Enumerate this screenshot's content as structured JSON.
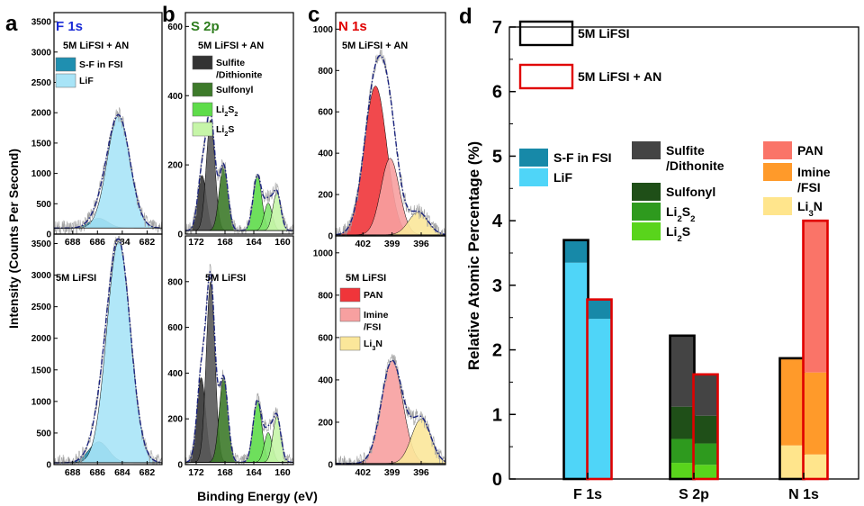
{
  "chart_data": [
    {
      "id": "a",
      "type": "line",
      "panel_letter": "a",
      "title": "F 1s",
      "title_color": "#1a2bd6",
      "ylabel": "Intensity (Counts Per Second)",
      "xlabel": "Binding Energy (eV)",
      "xlim": [
        689.5,
        680.8
      ],
      "ylim": [
        0,
        3650
      ],
      "xticks": [
        688,
        686,
        684,
        682
      ],
      "yticks": [
        0,
        500,
        1000,
        1500,
        2000,
        2500,
        3000,
        3500
      ],
      "subplots": [
        {
          "label": "5M LiFSI + AN",
          "baseline": 100,
          "legend": [
            {
              "name": "S-F in FSI",
              "color": "#1f8fb0"
            },
            {
              "name": "LiF",
              "color": "#a8e4f7"
            }
          ],
          "peaks": [
            {
              "name": "S-F in FSI",
              "center": 685.9,
              "width": 0.75,
              "height": 160,
              "color": "#1f8fb0"
            },
            {
              "name": "LiF",
              "center": 684.3,
              "width": 0.92,
              "height": 1850,
              "color": "#a8e4f7"
            }
          ]
        },
        {
          "label": "5M LiFSI",
          "baseline": 30,
          "legend": [],
          "peaks": [
            {
              "name": "S-F in FSI",
              "center": 685.9,
              "width": 0.8,
              "height": 330,
              "color": "#1f8fb0"
            },
            {
              "name": "LiF",
              "center": 684.3,
              "width": 0.95,
              "height": 3500,
              "color": "#a8e4f7"
            }
          ]
        }
      ]
    },
    {
      "id": "b",
      "type": "line",
      "panel_letter": "b",
      "title": "S 2p",
      "title_color": "#2e7d1e",
      "xlim": [
        173.5,
        158.5
      ],
      "ylim": [
        0,
        640
      ],
      "xticks": [
        172,
        168,
        164,
        160
      ],
      "yticks": [
        0,
        200,
        400,
        600
      ],
      "subplots": [
        {
          "label": "5M LiFSI + AN",
          "baseline": 10,
          "legend": [
            {
              "name": "Sulfite",
              "name2": "/Dithionite",
              "color": "#333333"
            },
            {
              "name": "Sulfonyl",
              "color": "#3d7a2a"
            },
            {
              "name": "Li",
              "sub": "2",
              "suffix": "S",
              "sub2": "2",
              "color": "#5edc4a"
            },
            {
              "name": "Li",
              "sub": "2",
              "suffix": "S",
              "color": "#c6f5a8"
            }
          ],
          "peaks": [
            {
              "name": "Sulfite",
              "center": 171.2,
              "width": 0.6,
              "height": 160,
              "color": "#333333"
            },
            {
              "name": "Dithionite",
              "center": 170.0,
              "width": 0.6,
              "height": 320,
              "color": "#5a5a5a"
            },
            {
              "name": "Sulfonyl",
              "center": 168.2,
              "width": 0.6,
              "height": 190,
              "color": "#3d7a2a"
            },
            {
              "name": "Li2S2",
              "center": 163.5,
              "width": 0.6,
              "height": 160,
              "color": "#5edc4a"
            },
            {
              "name": "Li2S2 b",
              "center": 162.0,
              "width": 0.55,
              "height": 80,
              "color": "#7fe36d"
            },
            {
              "name": "Li2S",
              "center": 160.8,
              "width": 0.55,
              "height": 110,
              "color": "#c6f5a8"
            }
          ]
        },
        {
          "label": "5M LiFSI",
          "baseline": 10,
          "legend": [],
          "peaks": [
            {
              "name": "Sulfite",
              "center": 171.3,
              "width": 0.6,
              "height": 370,
              "color": "#333333"
            },
            {
              "name": "Dithionite",
              "center": 170.0,
              "width": 0.6,
              "height": 790,
              "color": "#5a5a5a"
            },
            {
              "name": "Sulfonyl",
              "center": 168.2,
              "width": 0.6,
              "height": 370,
              "color": "#3d7a2a"
            },
            {
              "name": "Li2S2",
              "center": 163.5,
              "width": 0.6,
              "height": 270,
              "color": "#5edc4a"
            },
            {
              "name": "Li2S2 b",
              "center": 162.0,
              "width": 0.55,
              "height": 130,
              "color": "#7fe36d"
            },
            {
              "name": "Li2S",
              "center": 160.8,
              "width": 0.55,
              "height": 200,
              "color": "#c6f5a8"
            }
          ]
        }
      ],
      "ylim_bottom": [
        0,
        1000
      ],
      "yticks_bottom": [
        0,
        200,
        400,
        600,
        800
      ]
    },
    {
      "id": "c",
      "type": "line",
      "panel_letter": "c",
      "title": "N 1s",
      "title_color": "#e00000",
      "xlim": [
        404.8,
        393.5
      ],
      "ylim": [
        0,
        1080
      ],
      "xticks": [
        402,
        399,
        396
      ],
      "yticks": [
        0,
        200,
        400,
        600,
        800,
        1000
      ],
      "subplots": [
        {
          "label": "5M LiFSI + AN",
          "baseline": 5,
          "legend": [],
          "peaks": [
            {
              "name": "PAN",
              "center": 400.7,
              "width": 1.15,
              "height": 720,
              "color": "#f0353a"
            },
            {
              "name": "Imine/FSI",
              "center": 399.2,
              "width": 0.95,
              "height": 370,
              "color": "#f7a0a0"
            },
            {
              "name": "Li3N",
              "center": 396.3,
              "width": 1.0,
              "height": 110,
              "color": "#fbe79a"
            }
          ]
        },
        {
          "label": "5M LiFSI",
          "baseline": 5,
          "legend": [
            {
              "name": "PAN",
              "color": "#f0353a"
            },
            {
              "name": "Imine",
              "name2": "/FSI",
              "color": "#f7a0a0"
            },
            {
              "name": "Li",
              "sub": "3",
              "suffix": "N",
              "color": "#fbe79a"
            }
          ],
          "peaks": [
            {
              "name": "Imine/FSI",
              "center": 399.0,
              "width": 1.1,
              "height": 485,
              "color": "#f7a0a0"
            },
            {
              "name": "Li3N",
              "center": 396.0,
              "width": 1.0,
              "height": 210,
              "color": "#fbe79a"
            }
          ]
        }
      ]
    },
    {
      "id": "d",
      "type": "bar",
      "panel_letter": "d",
      "ylabel": "Relative Atomic Percentage (%)",
      "ylim": [
        0,
        7
      ],
      "yticks": [
        0,
        1,
        2,
        3,
        4,
        5,
        6,
        7
      ],
      "categories": [
        "F 1s",
        "S 2p",
        "N 1s"
      ],
      "series_legend": [
        {
          "name": "5M LiFSI",
          "edge": "#000000"
        },
        {
          "name": "5M LiFSI + AN",
          "edge": "#e00000"
        }
      ],
      "component_legend": [
        {
          "name": "S-F in FSI",
          "color": "#1789a8"
        },
        {
          "name": "LiF",
          "color": "#4fd5f8"
        },
        {
          "name": "Sulfite",
          "name2": "/Dithonite",
          "color": "#444444"
        },
        {
          "name": "Sulfonyl",
          "color": "#1f4f18"
        },
        {
          "name": "Li",
          "sub": "2",
          "suffix": "S",
          "sub2": "2",
          "color": "#2e9a1e"
        },
        {
          "name": "Li",
          "sub": "2",
          "suffix": "S",
          "color": "#59d41c"
        },
        {
          "name": "PAN",
          "color": "#fa7468"
        },
        {
          "name": "Imine",
          "name2": "/FSI",
          "color": "#ff9a2a"
        },
        {
          "name": "Li",
          "sub": "3",
          "suffix": "N",
          "color": "#ffe58c"
        }
      ],
      "bars": [
        {
          "category": "F 1s",
          "series": "5M LiFSI",
          "total": 3.7,
          "stack": [
            {
              "name": "LiF",
              "value": 3.35,
              "color": "#4fd5f8"
            },
            {
              "name": "S-F in FSI",
              "value": 0.35,
              "color": "#1789a8"
            }
          ]
        },
        {
          "category": "F 1s",
          "series": "5M LiFSI + AN",
          "total": 2.78,
          "stack": [
            {
              "name": "LiF",
              "value": 2.48,
              "color": "#4fd5f8"
            },
            {
              "name": "S-F in FSI",
              "value": 0.3,
              "color": "#1789a8"
            }
          ]
        },
        {
          "category": "S 2p",
          "series": "5M LiFSI",
          "total": 2.22,
          "stack": [
            {
              "name": "Li2S",
              "value": 0.25,
              "color": "#59d41c"
            },
            {
              "name": "Li2S2",
              "value": 0.37,
              "color": "#2e9a1e"
            },
            {
              "name": "Sulfonyl",
              "value": 0.5,
              "color": "#1f4f18"
            },
            {
              "name": "Sulfite/Dithonite",
              "value": 1.1,
              "color": "#444444"
            }
          ]
        },
        {
          "category": "S 2p",
          "series": "5M LiFSI + AN",
          "total": 1.62,
          "stack": [
            {
              "name": "Li2S",
              "value": 0.22,
              "color": "#59d41c"
            },
            {
              "name": "Li2S2",
              "value": 0.33,
              "color": "#2e9a1e"
            },
            {
              "name": "Sulfonyl",
              "value": 0.43,
              "color": "#1f4f18"
            },
            {
              "name": "Sulfite/Dithonite",
              "value": 0.64,
              "color": "#444444"
            }
          ]
        },
        {
          "category": "N 1s",
          "series": "5M LiFSI",
          "total": 1.87,
          "stack": [
            {
              "name": "Li3N",
              "value": 0.52,
              "color": "#ffe58c"
            },
            {
              "name": "Imine/FSI",
              "value": 1.35,
              "color": "#ff9a2a"
            }
          ]
        },
        {
          "category": "N 1s",
          "series": "5M LiFSI + AN",
          "total": 4.0,
          "stack": [
            {
              "name": "Li3N",
              "value": 0.38,
              "color": "#ffe58c"
            },
            {
              "name": "Imine/FSI",
              "value": 1.27,
              "color": "#ff9a2a"
            },
            {
              "name": "PAN",
              "value": 2.35,
              "color": "#fa7468"
            }
          ]
        }
      ]
    }
  ]
}
